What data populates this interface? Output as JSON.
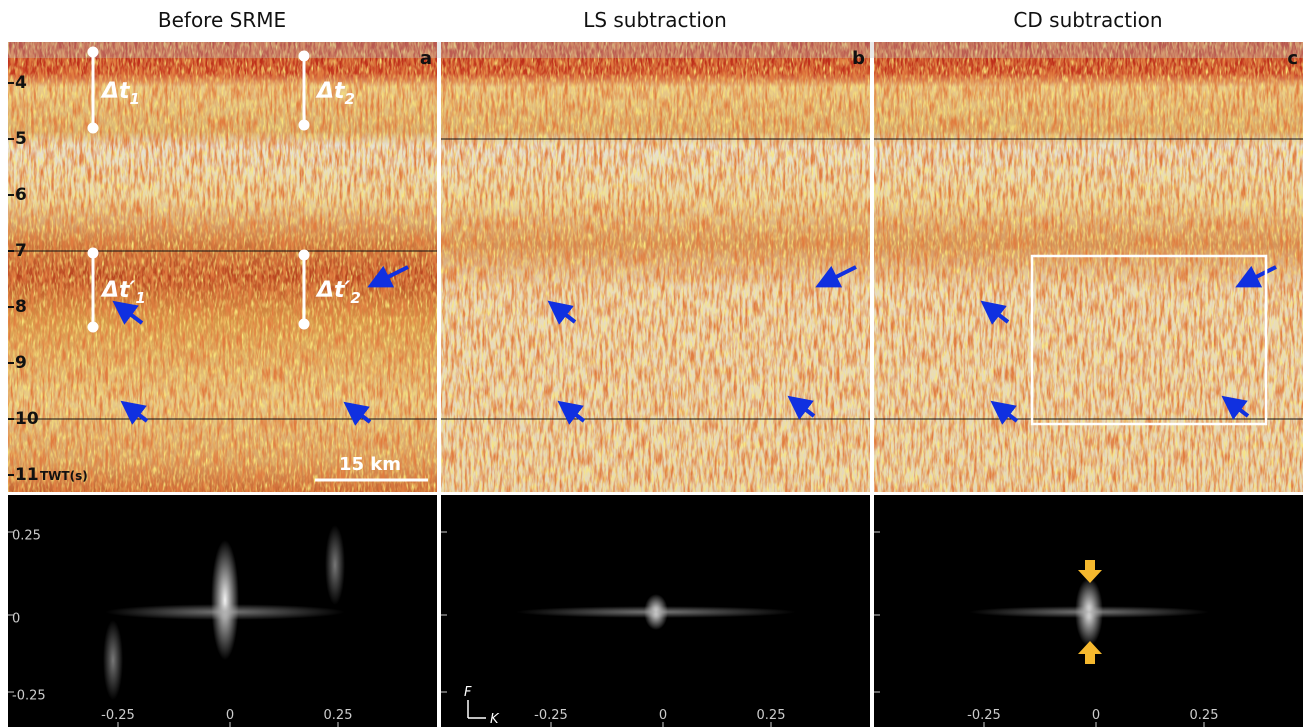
{
  "panels": [
    {
      "title": "Before SRME",
      "letter": "a"
    },
    {
      "title": "LS subtraction",
      "letter": "b"
    },
    {
      "title": "CD subtraction",
      "letter": "c"
    }
  ],
  "depth_axis": {
    "ticks": [
      "4",
      "5",
      "6",
      "7",
      "8",
      "9",
      "10",
      "11"
    ],
    "label": "TWT(s)"
  },
  "annotations": {
    "delta_t": [
      {
        "base": "Δt",
        "sub": "1"
      },
      {
        "base": "Δt",
        "sub": "2"
      },
      {
        "base": "Δt′",
        "sub": "1"
      },
      {
        "base": "Δt′",
        "sub": "2"
      }
    ],
    "scale_bar": "15 km"
  },
  "spectrum": {
    "f_ticks": [
      "0.25",
      "0",
      "-0.25"
    ],
    "k_ticks": [
      "-0.25",
      "0",
      "0.25"
    ],
    "f_label": "F",
    "k_label": "K"
  }
}
